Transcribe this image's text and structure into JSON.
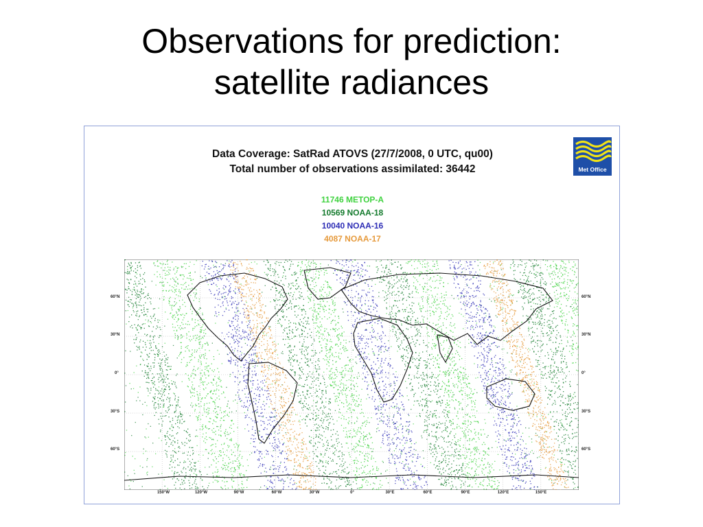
{
  "slide": {
    "title_line1": "Observations for prediction:",
    "title_line2": "satellite radiances"
  },
  "figure": {
    "title_line1": "Data Coverage: SatRad ATOVS  (27/7/2008, 0 UTC, qu00)",
    "title_line2": "Total number of observations assimilated: 36442",
    "logo_text": "Met Office",
    "legend": [
      {
        "text": "11746 METOP-A",
        "color": "#3fd23f"
      },
      {
        "text": "10569 NOAA-18",
        "color": "#137a2c"
      },
      {
        "text": "10040 NOAA-16",
        "color": "#2d2db5"
      },
      {
        "text": "4087 NOAA-17",
        "color": "#e69a3c"
      }
    ],
    "lat_labels_left": [
      "60°N",
      "30°N",
      "0°",
      "30°S",
      "60°S"
    ],
    "lat_labels_right": [
      "60°N",
      "30°N",
      "0°",
      "30°S",
      "60°S"
    ],
    "lon_labels": [
      "150°W",
      "120°W",
      "90°W",
      "60°W",
      "30°W",
      "0°",
      "30°E",
      "60°E",
      "90°E",
      "120°E",
      "150°E"
    ]
  }
}
